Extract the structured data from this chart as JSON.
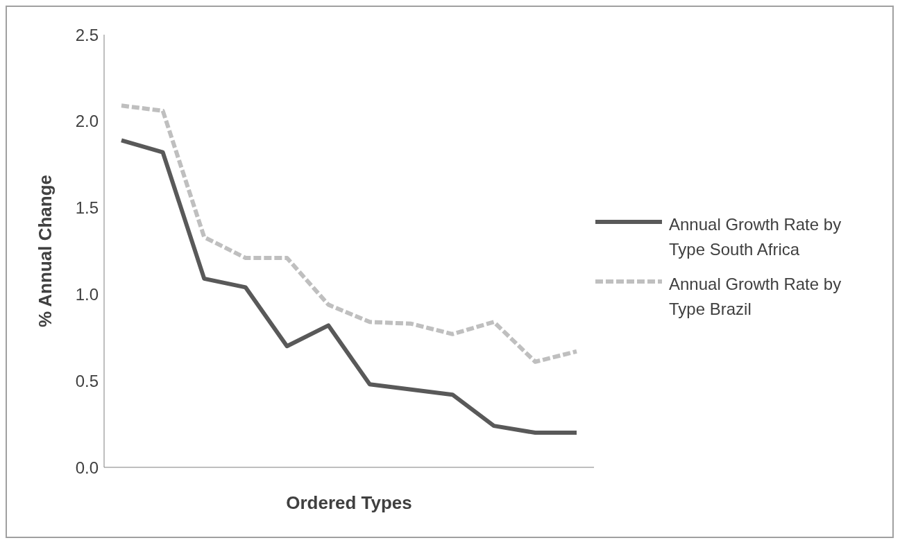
{
  "chart_data": {
    "type": "line",
    "xlabel": "Ordered Types",
    "ylabel": "% Annual Change",
    "categories": [
      null,
      null,
      null,
      null,
      null,
      null,
      null,
      null,
      null,
      null,
      null,
      null
    ],
    "series": [
      {
        "name": "Annual Growth Rate by Type South Africa",
        "color": "#595959",
        "line_style": "solid",
        "values": [
          1.89,
          1.82,
          1.09,
          1.04,
          0.7,
          0.82,
          0.48,
          0.45,
          0.42,
          0.24,
          0.2,
          0.2
        ]
      },
      {
        "name": "Annual Growth Rate by Type Brazil",
        "color": "#bfbfbf",
        "line_style": "dashed",
        "values": [
          2.09,
          2.06,
          1.33,
          1.21,
          1.21,
          0.94,
          0.84,
          0.83,
          0.77,
          0.84,
          0.61,
          0.67
        ]
      }
    ],
    "ylim": [
      0,
      2.5
    ],
    "yticks": [
      {
        "value": 0,
        "label": "0.0"
      },
      {
        "value": 0.5,
        "label": "0.5"
      },
      {
        "value": 1,
        "label": "1.0"
      },
      {
        "value": 1.5,
        "label": "1.5"
      },
      {
        "value": 2,
        "label": "2.0"
      },
      {
        "value": 2.5,
        "label": "2.5"
      }
    ],
    "grid": false,
    "legend": "right",
    "marker": "none",
    "tick_labels": "y"
  }
}
